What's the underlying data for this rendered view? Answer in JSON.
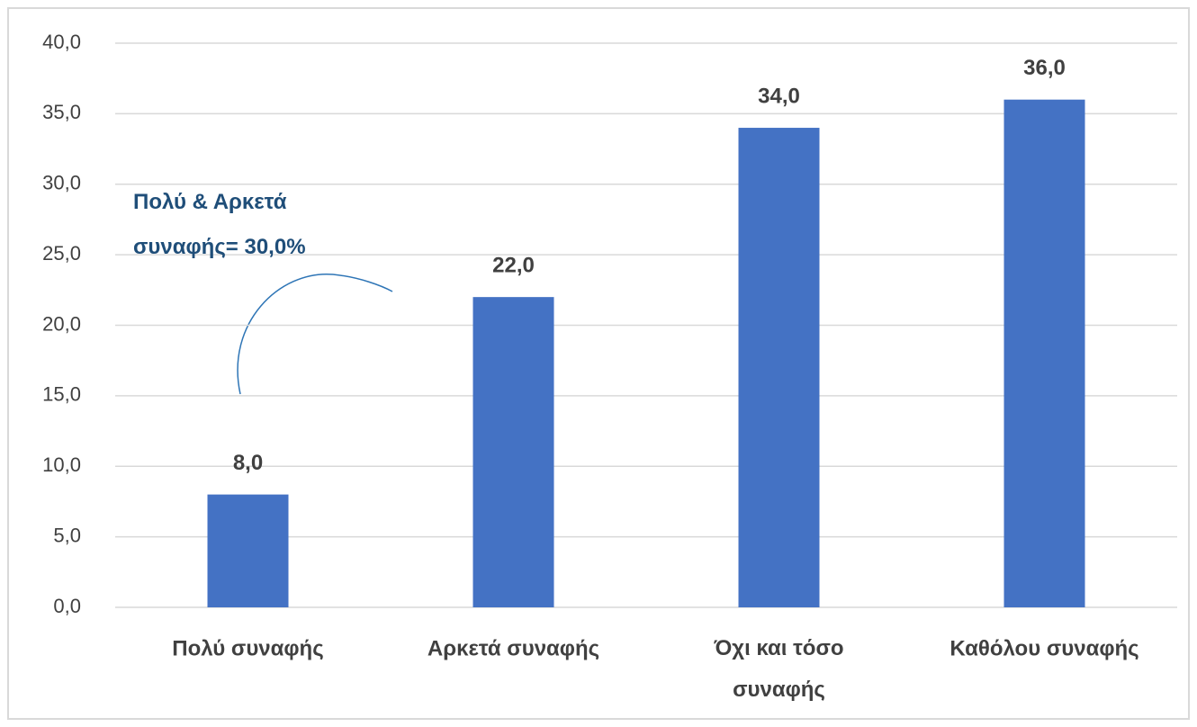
{
  "chart_data": {
    "type": "bar",
    "categories": [
      "Πολύ συναφής",
      "Αρκετά συναφής",
      "Όχι και τόσο\nσυναφής",
      "Καθόλου συναφής"
    ],
    "values": [
      8,
      22,
      34,
      36
    ],
    "value_labels": [
      "8,0",
      "22,0",
      "34,0",
      "36,0"
    ],
    "color": "#4472c4",
    "ylim": [
      0,
      40
    ],
    "yticks": [
      {
        "value": 0,
        "label": "0,0"
      },
      {
        "value": 5,
        "label": "5,0"
      },
      {
        "value": 10,
        "label": "10,0"
      },
      {
        "value": 15,
        "label": "15,0"
      },
      {
        "value": 20,
        "label": "20,0"
      },
      {
        "value": 25,
        "label": "25,0"
      },
      {
        "value": 30,
        "label": "30,0"
      },
      {
        "value": 35,
        "label": "35,0"
      },
      {
        "value": 40,
        "label": "40,0"
      }
    ],
    "grid": true,
    "annotation": "Πολύ & Αρκετά\nσυναφής= 30,0%"
  }
}
